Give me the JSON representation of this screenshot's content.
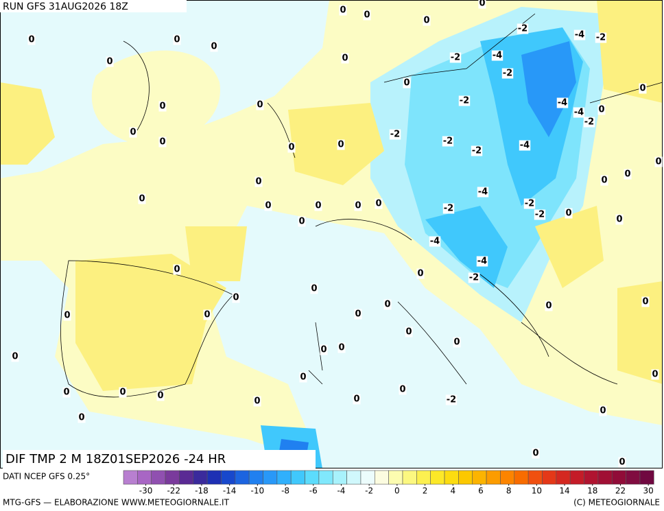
{
  "header": {
    "run": "RUN GFS 31AUG2026 18Z"
  },
  "map": {
    "title": "DIF TMP 2 M 18Z01SEP2026 -24 HR",
    "contour_labels": [
      0,
      0,
      0,
      0,
      0,
      0,
      0,
      0,
      0,
      0,
      0,
      0,
      0,
      0,
      0,
      0,
      0,
      0,
      0,
      0,
      0,
      0,
      0,
      0,
      0,
      0,
      0,
      0,
      0,
      0,
      0,
      0,
      0,
      0,
      0,
      0,
      0,
      0,
      0,
      0,
      0,
      0,
      0,
      0,
      0,
      0,
      0,
      0,
      0,
      0,
      0,
      0,
      0,
      0,
      0,
      0,
      0,
      -2,
      -2,
      -2,
      -2,
      -2,
      -2,
      -2,
      -2,
      -2,
      -2,
      -2,
      -2,
      -2,
      -2,
      -4,
      -4,
      -4,
      -4,
      -4,
      -4,
      -4,
      -4
    ]
  },
  "legend": {
    "source": "DATI NCEP GFS 0.25°",
    "ticks": [
      -30,
      -22,
      -18,
      -14,
      -10,
      -8,
      -6,
      -4,
      -2,
      0,
      2,
      4,
      6,
      8,
      10,
      14,
      18,
      22,
      30
    ],
    "colors": [
      "#b87fd0",
      "#a866c4",
      "#9050b0",
      "#7a3a9c",
      "#5a2a94",
      "#3a2a9c",
      "#1e30b4",
      "#1848cc",
      "#1c64e0",
      "#2080f0",
      "#2898f8",
      "#30b0fc",
      "#40c8fc",
      "#5cdcfc",
      "#80e8fc",
      "#a8f2fc",
      "#d0f8fc",
      "#ecfcfc",
      "#fcfce0",
      "#fcfcb0",
      "#fcf880",
      "#fcf050",
      "#fce828",
      "#fcdc10",
      "#fcc800",
      "#fcb400",
      "#fc9c00",
      "#fc8400",
      "#f86c00",
      "#f05010",
      "#e43818",
      "#d42820",
      "#c41c28",
      "#b01430",
      "#a01034",
      "#900c38",
      "#800c40",
      "#700840"
    ],
    "footer_left": "MTG-GFS — ELABORAZIONE WWW.METEOGIORNALE.IT",
    "footer_right": "(C) METEOGIORNALE"
  }
}
